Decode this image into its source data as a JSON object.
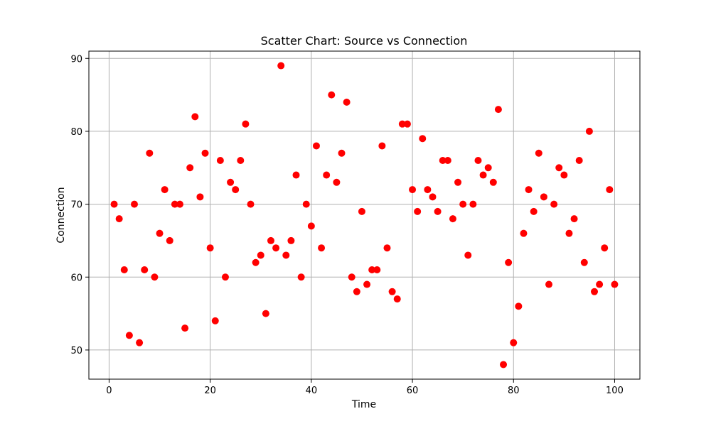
{
  "chart_data": {
    "type": "scatter",
    "title": "Scatter Chart: Source vs Connection",
    "xlabel": "Time",
    "ylabel": "Connection",
    "xlim": [
      -4,
      105
    ],
    "ylim": [
      46,
      91
    ],
    "xticks": [
      0,
      20,
      40,
      60,
      80,
      100
    ],
    "yticks": [
      50,
      60,
      70,
      80,
      90
    ],
    "grid": true,
    "marker_color": "#ff0000",
    "series": [
      {
        "x": [
          1,
          2,
          3,
          4,
          5,
          6,
          7,
          8,
          9,
          10,
          11,
          12,
          13,
          14,
          15,
          16,
          17,
          18,
          19,
          20,
          21,
          22,
          23,
          24,
          25,
          26,
          27,
          28,
          29,
          30,
          31,
          32,
          33,
          34,
          35,
          36,
          37,
          38,
          39,
          40,
          41,
          42,
          43,
          44,
          45,
          46,
          47,
          48,
          49,
          50,
          51,
          52,
          53,
          54,
          55,
          56,
          57,
          58,
          59,
          60,
          61,
          62,
          63,
          64,
          65,
          66,
          67,
          68,
          69,
          70,
          71,
          72,
          73,
          74,
          75,
          76,
          77,
          78,
          79,
          80,
          81,
          82,
          83,
          84,
          85,
          86,
          87,
          88,
          89,
          90,
          91,
          92,
          93,
          94,
          95,
          96,
          97,
          98,
          99,
          100
        ],
        "y": [
          70,
          68,
          61,
          52,
          70,
          51,
          61,
          77,
          60,
          66,
          72,
          65,
          70,
          70,
          53,
          75,
          82,
          71,
          77,
          64,
          54,
          76,
          60,
          73,
          72,
          76,
          81,
          70,
          62,
          63,
          55,
          65,
          64,
          89,
          63,
          65,
          74,
          60,
          70,
          67,
          78,
          64,
          74,
          85,
          73,
          77,
          84,
          60,
          58,
          69,
          59,
          61,
          61,
          78,
          64,
          58,
          57,
          81,
          81,
          72,
          69,
          79,
          72,
          71,
          69,
          76,
          76,
          68,
          73,
          70,
          63,
          70,
          76,
          74,
          75,
          73,
          83,
          48,
          62,
          51,
          56,
          66,
          72,
          69,
          77,
          71,
          59,
          70,
          75,
          74,
          66,
          68,
          76,
          62,
          80,
          58,
          59,
          64,
          72,
          59
        ]
      }
    ]
  }
}
